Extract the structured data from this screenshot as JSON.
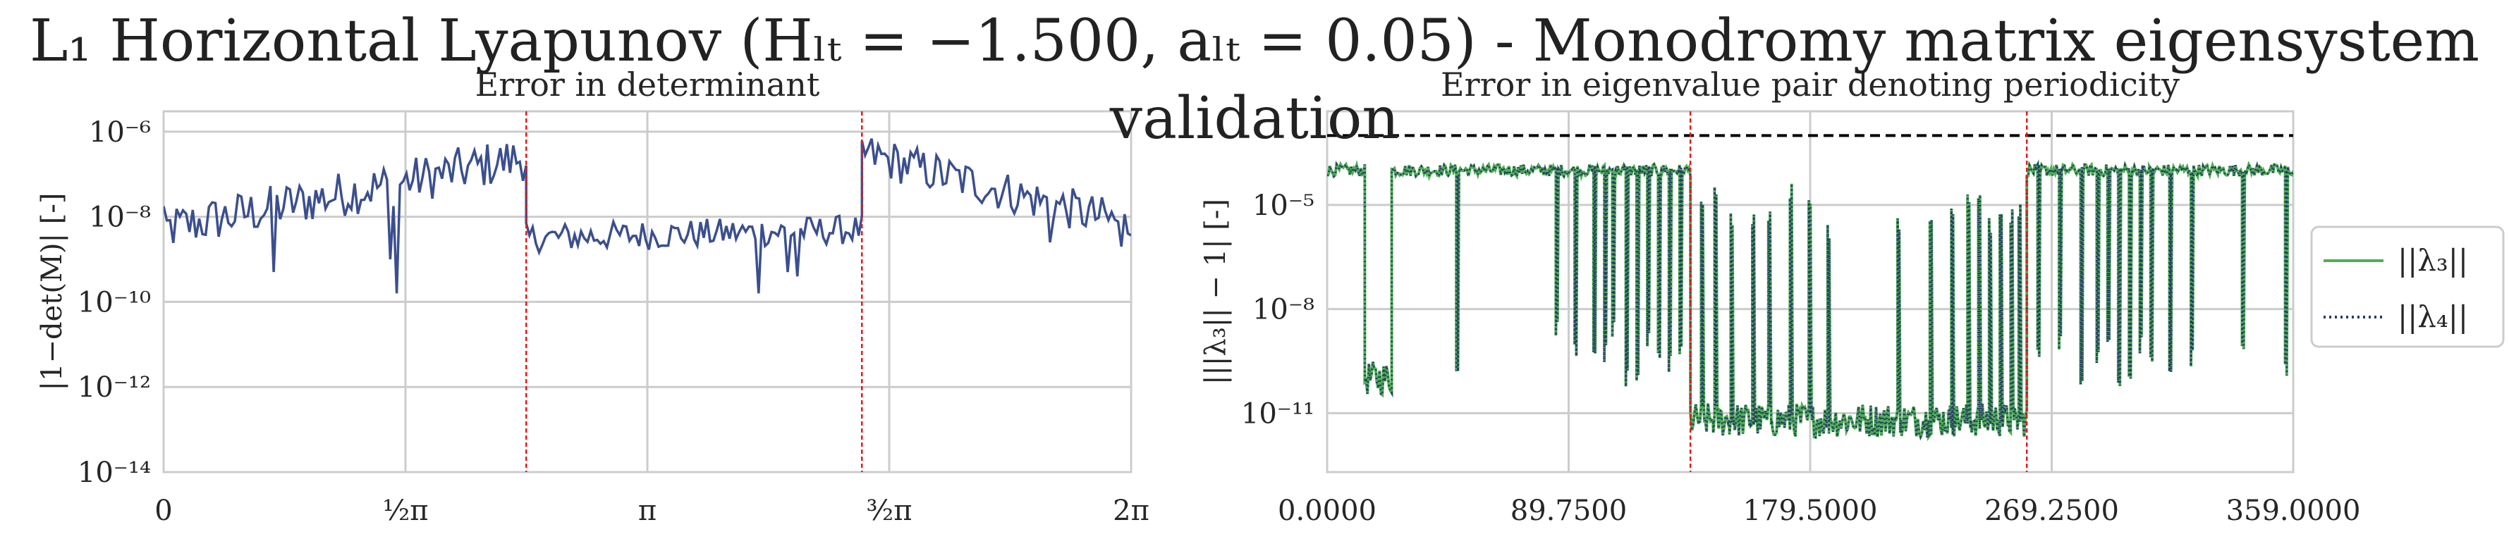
{
  "suptitle": "L₁ Horizontal Lyapunov (Hₗₜ = −1.500, aₗₜ = 0.05) - Monodromy matrix eigensystem validation",
  "colors": {
    "axis_frame": "#cccccc",
    "grid": "#cccccc",
    "det_line": "#3b4f8e",
    "lambda3": "#4cb050",
    "lambda4": "#2b3a6b",
    "threshold": "#000000",
    "vline": "#e41a1c",
    "text": "#262626"
  },
  "chart_data": [
    {
      "type": "line",
      "title": "Error in determinant",
      "ylabel": "|1−det(M)| [-]",
      "xlabel": "",
      "yscale": "log",
      "ylim": [
        1e-14,
        3e-06
      ],
      "xlim": [
        0,
        6.2832
      ],
      "grid": true,
      "legend": null,
      "xticks": [
        0,
        1.5708,
        3.1416,
        4.7124,
        6.2832
      ],
      "xtick_labels": [
        "0",
        "½π",
        "π",
        "³⁄₂π",
        "2π"
      ],
      "yticks": [
        1e-14,
        1e-12,
        1e-10,
        1e-08,
        1e-06
      ],
      "ytick_labels": [
        "10⁻¹⁴",
        "10⁻¹²",
        "10⁻¹⁰",
        "10⁻⁸",
        "10⁻⁶"
      ],
      "vlines": [
        2.355,
        4.535
      ],
      "segments": [
        {
          "x_start": 0.0,
          "x_end": 2.355,
          "log10_start": -8.3,
          "log10_end": -6.6,
          "spread": 0.55,
          "dips": [
            -9.8,
            -9.3,
            -9.0
          ]
        },
        {
          "x_start": 2.355,
          "x_end": 4.535,
          "log10_start": -8.5,
          "log10_end": -8.3,
          "spread": 0.35,
          "dips": [
            -9.8,
            -9.4,
            -9.3
          ]
        },
        {
          "x_start": 4.535,
          "x_end": 6.2832,
          "log10_start": -6.5,
          "log10_end": -8.2,
          "spread": 0.5,
          "dips": [
            -8.6,
            -8.7
          ]
        }
      ]
    },
    {
      "type": "line",
      "title": "Error in eigenvalue pair denoting periodicity",
      "ylabel": "|||λ₃|| − 1| [-]",
      "xlabel": "",
      "yscale": "log",
      "ylim": [
        2e-13,
        0.005
      ],
      "xlim": [
        0,
        359
      ],
      "grid": true,
      "legend": {
        "placement": "right",
        "entries": [
          "||λ₃||",
          "||λ₄||"
        ]
      },
      "xticks": [
        0,
        89.75,
        179.5,
        269.25,
        359
      ],
      "xtick_labels": [
        "0.0000",
        "89.7500",
        "179.5000",
        "269.2500",
        "359.0000"
      ],
      "yticks": [
        1e-11,
        1e-08,
        1e-05
      ],
      "ytick_labels": [
        "10⁻¹¹",
        "10⁻⁸",
        "10⁻⁵"
      ],
      "threshold": 0.001,
      "vlines": [
        135,
        260
      ],
      "series": [
        {
          "name": "||λ₃||",
          "style": "solid"
        },
        {
          "name": "||λ₄||",
          "style": "dotted"
        }
      ],
      "regions": [
        {
          "x_start": 0,
          "x_end": 14,
          "log10": -4.0
        },
        {
          "x_start": 14,
          "x_end": 24,
          "log10": -10.0
        },
        {
          "x_start": 24,
          "x_end": 135,
          "log10": -4.0,
          "spikes": [
            48,
            85,
            92,
            99,
            103,
            106,
            111,
            115,
            119,
            123,
            127,
            131
          ],
          "spike_low": -9.5
        },
        {
          "x_start": 135,
          "x_end": 260,
          "log10": -11.2,
          "spikes": [
            139,
            144,
            150,
            158,
            164,
            172,
            179,
            186,
            212,
            224,
            232,
            238,
            242,
            246,
            250,
            254,
            257
          ],
          "spike_high": -5.0
        },
        {
          "x_start": 260,
          "x_end": 359,
          "log10": -4.0,
          "spikes": [
            264,
            272,
            280,
            286,
            290,
            294,
            298,
            302,
            306,
            313,
            321,
            340,
            356
          ],
          "spike_low": -9.5
        }
      ]
    }
  ]
}
